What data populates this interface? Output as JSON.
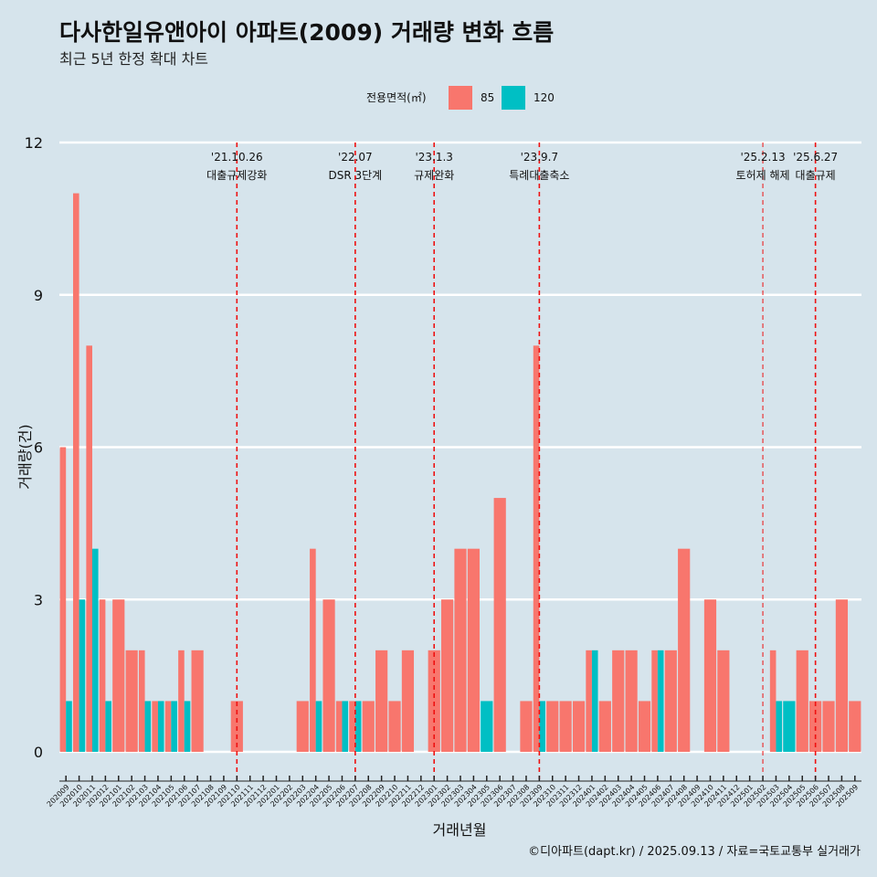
{
  "title": "다사한일유앤아이 아파트(2009) 거래량 변화 흐름",
  "subtitle": "최근 5년 한정 확대 차트",
  "caption": "©디아파트(dapt.kr) / 2025.09.13 / 자료=국토교통부 실거래가",
  "colors": {
    "85": "#f8766d",
    "120": "#00bfc4",
    "background": "#d6e4ec",
    "event_line": "#ee1111"
  },
  "chart_data": {
    "type": "bar",
    "xlabel": "거래년월",
    "ylabel": "거래량(건)",
    "ylim": [
      0,
      12
    ],
    "yticks": [
      0,
      3,
      6,
      9,
      12
    ],
    "grid": "horizontal",
    "legend": {
      "title": "전용면적(㎡)",
      "placement": "top",
      "entries": [
        "85",
        "120"
      ]
    },
    "categories": [
      "202009",
      "202010",
      "202011",
      "202012",
      "202101",
      "202102",
      "202103",
      "202104",
      "202105",
      "202106",
      "202107",
      "202108",
      "202109",
      "202110",
      "202111",
      "202112",
      "202201",
      "202202",
      "202203",
      "202204",
      "202205",
      "202206",
      "202207",
      "202208",
      "202209",
      "202210",
      "202211",
      "202212",
      "202301",
      "202302",
      "202303",
      "202304",
      "202305",
      "202306",
      "202307",
      "202308",
      "202309",
      "202310",
      "202311",
      "202312",
      "202401",
      "202402",
      "202403",
      "202404",
      "202405",
      "202406",
      "202407",
      "202408",
      "202409",
      "202410",
      "202411",
      "202412",
      "202501",
      "202502",
      "202503",
      "202504",
      "202505",
      "202506",
      "202507",
      "202508",
      "202509"
    ],
    "series": [
      {
        "name": "85",
        "values": [
          6,
          11,
          8,
          3,
          3,
          2,
          2,
          1,
          1,
          2,
          2,
          0,
          0,
          1,
          0,
          0,
          0,
          0,
          1,
          4,
          3,
          1,
          1,
          1,
          2,
          1,
          2,
          0,
          2,
          3,
          4,
          4,
          0,
          5,
          0,
          1,
          8,
          1,
          1,
          1,
          2,
          1,
          2,
          2,
          1,
          2,
          2,
          4,
          0,
          3,
          2,
          0,
          0,
          0,
          2,
          0,
          2,
          1,
          1,
          3,
          1
        ]
      },
      {
        "name": "120",
        "values": [
          1,
          3,
          4,
          1,
          0,
          0,
          1,
          1,
          1,
          1,
          0,
          0,
          0,
          0,
          0,
          0,
          0,
          0,
          0,
          1,
          0,
          1,
          1,
          0,
          0,
          0,
          0,
          0,
          0,
          0,
          0,
          0,
          1,
          0,
          0,
          0,
          1,
          0,
          0,
          0,
          2,
          0,
          0,
          0,
          0,
          2,
          0,
          0,
          0,
          0,
          0,
          0,
          0,
          0,
          1,
          1,
          0,
          0,
          0,
          0,
          0
        ]
      }
    ],
    "events": [
      {
        "date": "'21.10.26",
        "label": "대출규제강화",
        "x": "202110"
      },
      {
        "date": "'22.07",
        "label": "DSR 3단계",
        "x": "202207"
      },
      {
        "date": "'23.1.3",
        "label": "규제완화",
        "x": "202301"
      },
      {
        "date": "'23.9.7",
        "label": "특례대출축소",
        "x": "202309"
      },
      {
        "date": "'25.2.13",
        "label": "토허제 해제",
        "x": "202502"
      },
      {
        "date": "'25.6.27",
        "label": "대출규제",
        "x": "202506"
      }
    ]
  }
}
